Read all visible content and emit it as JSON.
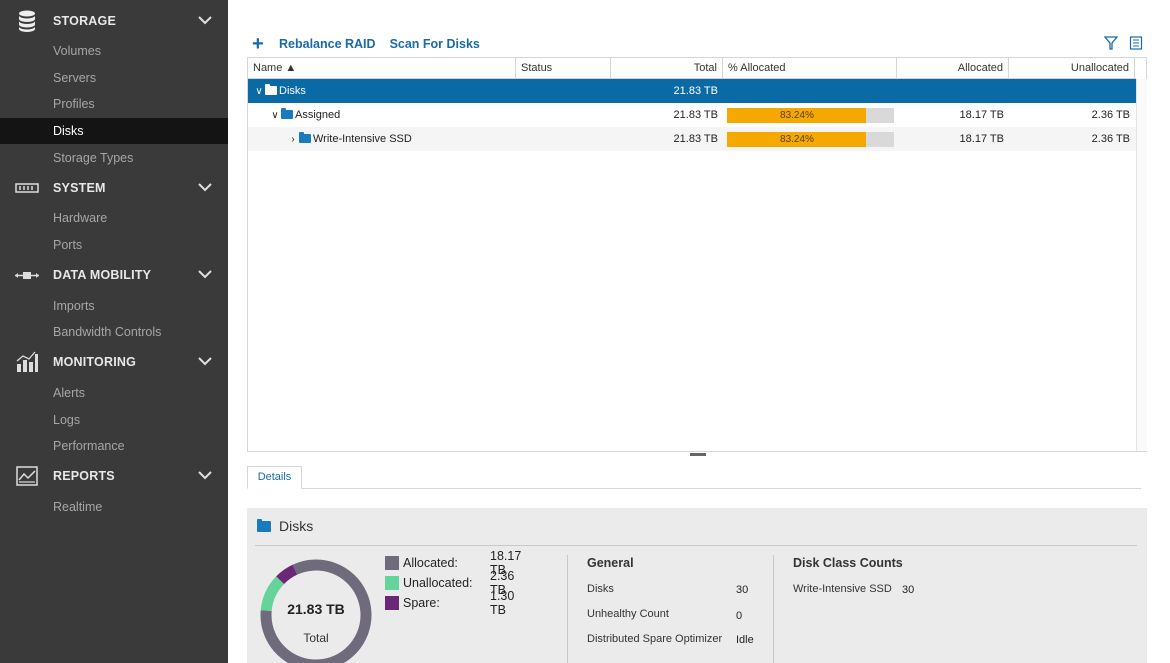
{
  "sidebar": {
    "sections": [
      {
        "label": "STORAGE",
        "icon": "database-icon",
        "items": [
          "Volumes",
          "Servers",
          "Profiles",
          "Disks",
          "Storage Types"
        ]
      },
      {
        "label": "SYSTEM",
        "icon": "server-rack-icon",
        "items": [
          "Hardware",
          "Ports"
        ]
      },
      {
        "label": "DATA MOBILITY",
        "icon": "data-transfer-icon",
        "items": [
          "Imports",
          "Bandwidth Controls"
        ]
      },
      {
        "label": "MONITORING",
        "icon": "bar-chart-icon",
        "items": [
          "Alerts",
          "Logs",
          "Performance"
        ]
      },
      {
        "label": "REPORTS",
        "icon": "line-chart-icon",
        "items": [
          "Realtime"
        ]
      }
    ],
    "active_item": "Disks"
  },
  "toolbar": {
    "rebalance_label": "Rebalance RAID",
    "scan_label": "Scan For Disks"
  },
  "grid": {
    "columns": [
      "Name ▲",
      "Status",
      "Total",
      "% Allocated",
      "Allocated",
      "Unallocated"
    ],
    "rows": [
      {
        "name": "Disks",
        "status": "",
        "total": "21.83 TB",
        "pct_label": "",
        "pct": null,
        "allocated": "",
        "unallocated": ""
      },
      {
        "name": "Assigned",
        "status": "",
        "total": "21.83 TB",
        "pct_label": "83.24%",
        "pct": 83.24,
        "allocated": "18.17 TB",
        "unallocated": "2.36 TB"
      },
      {
        "name": "Write-Intensive SSD",
        "status": "",
        "total": "21.83 TB",
        "pct_label": "83.24%",
        "pct": 83.24,
        "allocated": "18.17 TB",
        "unallocated": "2.36 TB"
      }
    ]
  },
  "tabs": {
    "details": "Details"
  },
  "details": {
    "title": "Disks",
    "donut": {
      "center_value": "21.83 TB",
      "center_label": "Total",
      "slices": [
        {
          "name": "Allocated",
          "value": 18.17,
          "color": "#6f6a7c"
        },
        {
          "name": "Unallocated",
          "value": 2.36,
          "color": "#66d49a"
        },
        {
          "name": "Spare",
          "value": 1.3,
          "color": "#6b2877"
        }
      ]
    },
    "legend": [
      {
        "label": "Allocated:",
        "value": "18.17 TB",
        "color": "#6f6a7c"
      },
      {
        "label": "Unallocated:",
        "value": "2.36 TB",
        "color": "#66d49a"
      },
      {
        "label": "Spare:",
        "value": "1.30 TB",
        "color": "#6b2877"
      }
    ],
    "general": {
      "title": "General",
      "rows": [
        {
          "key": "Disks",
          "value": "30"
        },
        {
          "key": "Unhealthy Count",
          "value": "0"
        },
        {
          "key": "Distributed Spare Optimizer",
          "value": "Idle"
        }
      ]
    },
    "disk_class": {
      "title": "Disk Class Counts",
      "rows": [
        {
          "key": "Write-Intensive SSD",
          "value": "30"
        }
      ]
    }
  }
}
